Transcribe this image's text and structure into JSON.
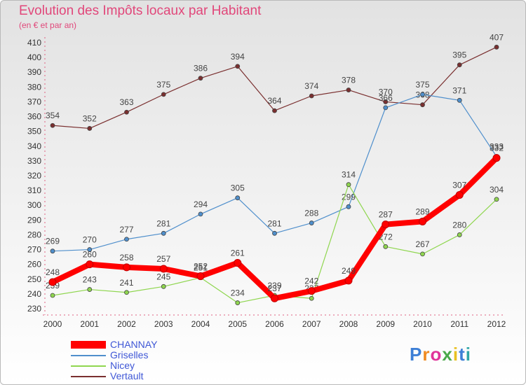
{
  "header": {
    "title": "Evolution des Impôts locaux par Habitant",
    "subtitle": "(en € et par an)"
  },
  "logo": {
    "text": "Proxiti"
  },
  "chart_data": {
    "type": "line",
    "title": "Evolution des Impôts locaux par Habitant",
    "subtitle": "(en € et par an)",
    "xlabel": "",
    "ylabel": "",
    "x": [
      "2000",
      "2001",
      "2002",
      "2003",
      "2004",
      "2005",
      "2006",
      "2007",
      "2008",
      "2009",
      "2010",
      "2011",
      "2012"
    ],
    "ylim": [
      230,
      410
    ],
    "yticks": [
      230,
      240,
      250,
      260,
      270,
      280,
      290,
      300,
      310,
      320,
      330,
      340,
      350,
      360,
      370,
      380,
      390,
      400,
      410
    ],
    "grid": false,
    "legend_position": "bottom-left",
    "series": [
      {
        "name": "CHANNAY",
        "color": "#ff0000",
        "values": [
          248,
          260,
          258,
          257,
          252,
          261,
          237,
          242,
          249,
          287,
          289,
          307,
          332
        ]
      },
      {
        "name": "Griselles",
        "color": "#4f8fcc",
        "values": [
          269,
          270,
          277,
          281,
          294,
          305,
          281,
          288,
          299,
          366,
          375,
          371,
          333
        ]
      },
      {
        "name": "Nicey",
        "color": "#8fd64f",
        "values": [
          239,
          243,
          241,
          245,
          251,
          234,
          239,
          237,
          314,
          272,
          267,
          280,
          304
        ]
      },
      {
        "name": "Vertault",
        "color": "#7a2f2f",
        "values": [
          354,
          352,
          363,
          375,
          386,
          394,
          364,
          374,
          378,
          370,
          368,
          395,
          407
        ]
      }
    ]
  }
}
